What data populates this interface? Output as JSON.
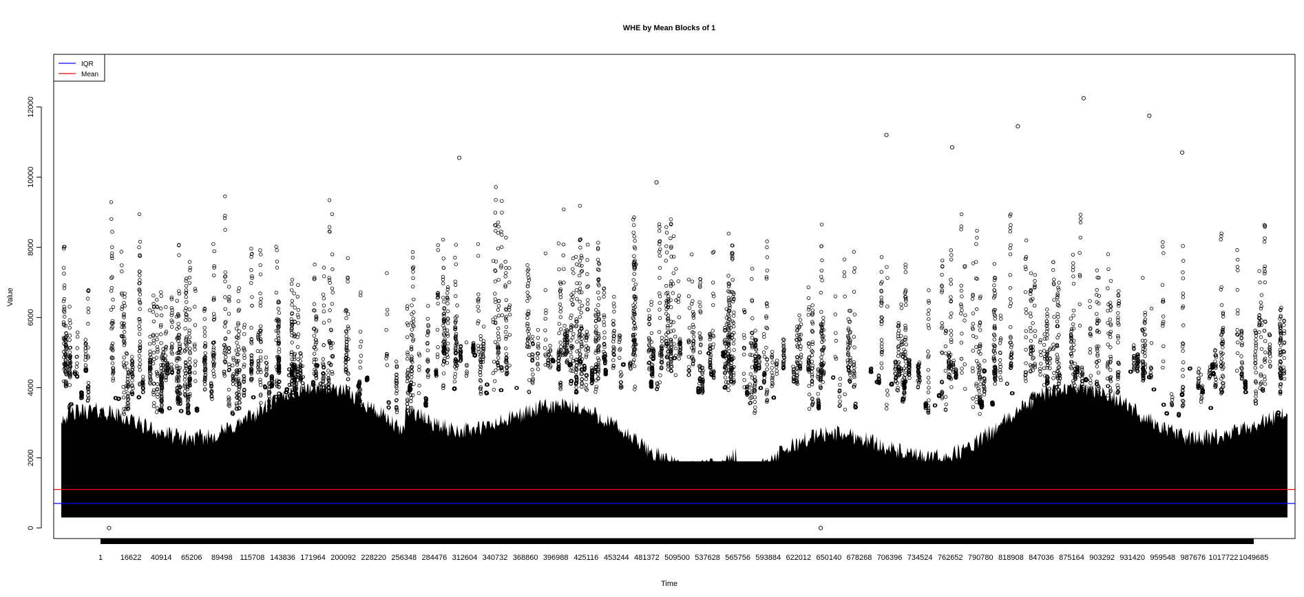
{
  "chart_data": {
    "type": "scatter",
    "title": "WHE by Mean Blocks of 1",
    "xlabel": "Time",
    "ylabel": "Value",
    "xlim": [
      1,
      1049685
    ],
    "ylim": [
      -300,
      13500
    ],
    "y_ticks": [
      0,
      2000,
      4000,
      6000,
      8000,
      10000,
      12000
    ],
    "x_tick_labels": [
      "1",
      "16622",
      "40914",
      "65206",
      "89498",
      "115708",
      "143836",
      "171964",
      "200092",
      "228220",
      "256348",
      "284476",
      "312604",
      "340732",
      "368860",
      "396988",
      "425116",
      "453244",
      "481372",
      "509500",
      "537628",
      "565756",
      "593884",
      "622012",
      "650140",
      "678268",
      "706396",
      "734524",
      "762652",
      "790780",
      "818908",
      "847036",
      "875164",
      "903292",
      "931420",
      "959548",
      "987676",
      "1017722",
      "1049685"
    ],
    "series": [
      {
        "name": "WHE",
        "marker": "open-circle",
        "color": "#000000",
        "approx_range": [
          250,
          12250
        ],
        "approx_bulk_range": [
          300,
          3600
        ]
      }
    ],
    "reference_lines": [
      {
        "name": "IQR",
        "value": 700,
        "color": "#0000ff"
      },
      {
        "name": "Mean",
        "value": 1100,
        "color": "#ff0000"
      }
    ],
    "annotations": [
      {
        "x": 40914,
        "y": 0
      },
      {
        "x": 650140,
        "y": 0
      },
      {
        "x": 875164,
        "y": 12250
      },
      {
        "x": 931420,
        "y": 11750
      },
      {
        "x": 818908,
        "y": 11450
      },
      {
        "x": 706396,
        "y": 11200
      },
      {
        "x": 762652,
        "y": 10850
      },
      {
        "x": 959548,
        "y": 10700
      },
      {
        "x": 340732,
        "y": 10550
      },
      {
        "x": 509500,
        "y": 9850
      }
    ],
    "legend": {
      "position": "top-left",
      "entries": [
        {
          "label": "IQR",
          "color": "#0000ff"
        },
        {
          "label": "Mean",
          "color": "#ff0000"
        }
      ]
    },
    "grid": false
  }
}
